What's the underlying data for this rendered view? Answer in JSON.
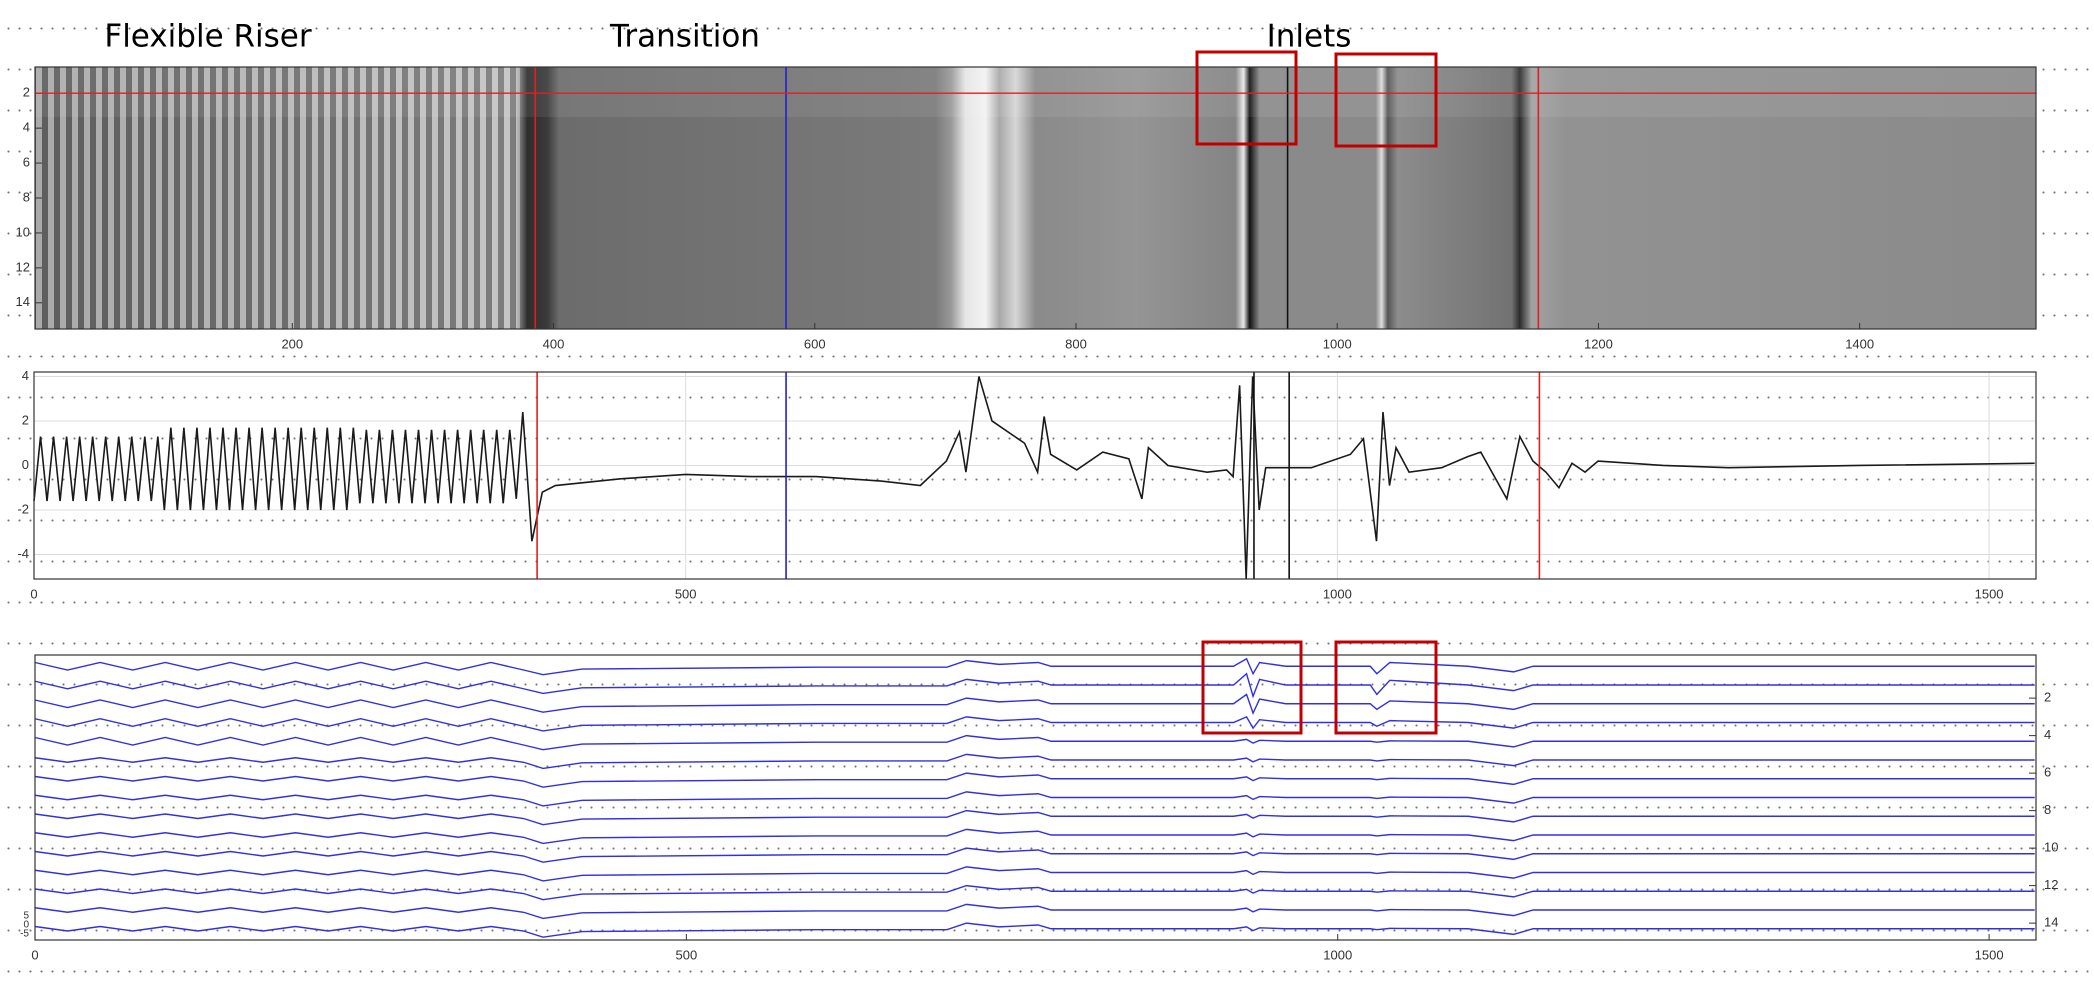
{
  "chart_data": [
    {
      "type": "image",
      "annotations": [
        "Flexible Riser",
        "Transition",
        "Inlets"
      ],
      "xlim": [
        3,
        1535
      ],
      "xticks": [
        200,
        400,
        600,
        800,
        1000,
        1200,
        1400
      ],
      "ylim": [
        0.5,
        15.5
      ],
      "y_inverted": true,
      "yticks": [
        2,
        4,
        6,
        8,
        10,
        12,
        14
      ],
      "hlines": [
        {
          "y": 2,
          "color": "#e02020"
        }
      ],
      "vlines": [
        {
          "x": 386,
          "color": "#e02020"
        },
        {
          "x": 578,
          "color": "#2020d0"
        },
        {
          "x": 962,
          "color": "#111111"
        },
        {
          "x": 1154,
          "color": "#e02020"
        }
      ]
    },
    {
      "type": "line",
      "x": [
        0,
        5,
        10,
        15,
        20,
        25,
        30,
        35,
        40,
        45,
        50,
        55,
        60,
        65,
        70,
        75,
        80,
        85,
        90,
        95,
        100,
        105,
        110,
        115,
        120,
        125,
        130,
        135,
        140,
        145,
        150,
        155,
        160,
        165,
        170,
        175,
        180,
        185,
        190,
        195,
        200,
        205,
        210,
        215,
        220,
        225,
        230,
        235,
        240,
        245,
        250,
        255,
        260,
        265,
        270,
        275,
        280,
        285,
        290,
        295,
        300,
        305,
        310,
        315,
        320,
        325,
        330,
        335,
        340,
        345,
        350,
        355,
        360,
        365,
        370,
        375,
        382,
        390,
        400,
        450,
        500,
        550,
        600,
        650,
        680,
        700,
        710,
        715,
        725,
        735,
        760,
        770,
        775,
        780,
        800,
        820,
        840,
        850,
        855,
        870,
        900,
        915,
        920,
        925,
        930,
        935,
        940,
        945,
        980,
        1010,
        1020,
        1030,
        1035,
        1040,
        1045,
        1055,
        1080,
        1100,
        1110,
        1130,
        1140,
        1150,
        1160,
        1170,
        1180,
        1190,
        1200,
        1250,
        1300,
        1400,
        1535
      ],
      "series": [
        {
          "color": "#1a1a1a",
          "values": [
            -1.6,
            1.3,
            -1.6,
            1.3,
            -1.6,
            1.3,
            -1.6,
            1.3,
            -1.6,
            1.3,
            -1.6,
            1.3,
            -1.6,
            1.3,
            -1.6,
            1.3,
            -1.6,
            1.3,
            -1.6,
            1.3,
            -2.0,
            1.7,
            -2.0,
            1.7,
            -2.0,
            1.7,
            -2.0,
            1.7,
            -2.0,
            1.7,
            -2.0,
            1.7,
            -2.0,
            1.7,
            -2.0,
            1.7,
            -2.0,
            1.7,
            -2.0,
            1.7,
            -2.0,
            1.7,
            -2.0,
            1.7,
            -2.0,
            1.7,
            -2.0,
            1.7,
            -2.0,
            1.7,
            -1.7,
            1.6,
            -1.7,
            1.6,
            -1.7,
            1.6,
            -1.7,
            1.6,
            -1.7,
            1.6,
            -1.7,
            1.6,
            -1.7,
            1.6,
            -1.7,
            1.6,
            -1.7,
            1.6,
            -1.7,
            1.6,
            -1.7,
            1.6,
            -1.7,
            1.6,
            -1.5,
            2.4,
            -3.4,
            -1.2,
            -0.9,
            -0.6,
            -0.4,
            -0.5,
            -0.5,
            -0.7,
            -0.9,
            0.2,
            1.5,
            -0.3,
            4.0,
            2.0,
            1.0,
            -0.3,
            2.2,
            0.5,
            -0.2,
            0.6,
            0.3,
            -1.5,
            0.8,
            0,
            -0.3,
            -0.2,
            -0.5,
            3.6,
            -5.1,
            4.0,
            -2.0,
            -0.1,
            -0.1,
            0.5,
            1.2,
            -3.4,
            2.4,
            -0.9,
            0.8,
            -0.3,
            -0.1,
            0.4,
            0.6,
            -1.5,
            1.3,
            0.2,
            -0.3,
            -1.0,
            0.1,
            -0.3,
            0.2,
            0,
            -0.1,
            0,
            0.1
          ]
        }
      ],
      "xlim": [
        0,
        1536
      ],
      "xticks": [
        0,
        500,
        1000,
        1500
      ],
      "ylim": [
        -5.1,
        4.2
      ],
      "yticks": [
        -4,
        -2,
        0,
        2,
        4
      ],
      "grid": true,
      "vlines": [
        {
          "x": 386,
          "color": "#e02020"
        },
        {
          "x": 577,
          "color": "#2020d0"
        },
        {
          "x": 936,
          "color": "#111111"
        },
        {
          "x": 963,
          "color": "#111111"
        },
        {
          "x": 1155,
          "color": "#e02020"
        }
      ]
    },
    {
      "type": "traces",
      "x": [
        0,
        25,
        50,
        75,
        100,
        125,
        150,
        175,
        200,
        225,
        250,
        275,
        300,
        325,
        350,
        375,
        390,
        420,
        600,
        700,
        715,
        740,
        770,
        780,
        800,
        920,
        930,
        935,
        940,
        960,
        1025,
        1030,
        1040,
        1100,
        1135,
        1150,
        1200,
        1535
      ],
      "series": [
        {
          "color": "#3030e0",
          "values": [
            0.1,
            0.5,
            0.1,
            0.5,
            0.1,
            0.5,
            0.1,
            0.5,
            0.1,
            0.5,
            0.1,
            0.5,
            0.1,
            0.5,
            0.1,
            0.5,
            0.75,
            0.45,
            0.35,
            0.35,
            0.0,
            0.2,
            0.1,
            0.3,
            0.3,
            0.3,
            -0.1,
            0.7,
            0.1,
            0.3,
            0.3,
            0.7,
            0.1,
            0.3,
            0.6,
            0.3,
            0.3,
            0.3
          ]
        },
        {
          "color": "#3030e0",
          "values": [
            1.1,
            1.5,
            1.1,
            1.5,
            1.1,
            1.5,
            1.1,
            1.5,
            1.1,
            1.5,
            1.1,
            1.5,
            1.1,
            1.5,
            1.1,
            1.5,
            1.75,
            1.45,
            1.35,
            1.35,
            1.0,
            1.2,
            1.1,
            1.3,
            1.3,
            1.3,
            0.7,
            1.9,
            1.0,
            1.3,
            1.3,
            1.8,
            1.05,
            1.3,
            1.6,
            1.3,
            1.3,
            1.3
          ]
        },
        {
          "color": "#3030e0",
          "values": [
            2.1,
            2.5,
            2.1,
            2.5,
            2.1,
            2.5,
            2.1,
            2.5,
            2.1,
            2.5,
            2.1,
            2.5,
            2.1,
            2.5,
            2.1,
            2.5,
            2.75,
            2.45,
            2.35,
            2.35,
            2.0,
            2.2,
            2.1,
            2.3,
            2.3,
            2.3,
            1.8,
            2.8,
            2.05,
            2.3,
            2.3,
            2.6,
            2.15,
            2.3,
            2.6,
            2.3,
            2.3,
            2.3
          ]
        },
        {
          "color": "#3030e0",
          "values": [
            3.1,
            3.5,
            3.1,
            3.5,
            3.1,
            3.5,
            3.1,
            3.5,
            3.1,
            3.5,
            3.1,
            3.5,
            3.1,
            3.5,
            3.1,
            3.5,
            3.75,
            3.45,
            3.35,
            3.35,
            3.0,
            3.2,
            3.1,
            3.3,
            3.3,
            3.3,
            3.0,
            3.6,
            3.15,
            3.3,
            3.3,
            3.5,
            3.2,
            3.3,
            3.6,
            3.3,
            3.3,
            3.3
          ]
        },
        {
          "color": "#3030e0",
          "values": [
            4.1,
            4.5,
            4.1,
            4.5,
            4.1,
            4.5,
            4.1,
            4.5,
            4.1,
            4.5,
            4.1,
            4.5,
            4.1,
            4.5,
            4.1,
            4.5,
            4.75,
            4.45,
            4.35,
            4.35,
            4.0,
            4.2,
            4.1,
            4.3,
            4.3,
            4.3,
            4.2,
            4.4,
            4.25,
            4.3,
            4.3,
            4.35,
            4.28,
            4.3,
            4.6,
            4.3,
            4.3,
            4.3
          ]
        },
        {
          "color": "#3030e0",
          "values": [
            5.18,
            5.42,
            5.18,
            5.42,
            5.18,
            5.42,
            5.18,
            5.42,
            5.18,
            5.42,
            5.18,
            5.42,
            5.18,
            5.42,
            5.18,
            5.42,
            5.75,
            5.45,
            5.35,
            5.35,
            5.0,
            5.2,
            5.1,
            5.3,
            5.3,
            5.3,
            5.2,
            5.4,
            5.25,
            5.3,
            5.3,
            5.35,
            5.28,
            5.3,
            5.6,
            5.3,
            5.3,
            5.3
          ]
        },
        {
          "color": "#3030e0",
          "values": [
            6.18,
            6.42,
            6.18,
            6.42,
            6.18,
            6.42,
            6.18,
            6.42,
            6.18,
            6.42,
            6.18,
            6.42,
            6.18,
            6.42,
            6.18,
            6.42,
            6.75,
            6.45,
            6.35,
            6.35,
            6.0,
            6.2,
            6.1,
            6.3,
            6.3,
            6.3,
            6.2,
            6.4,
            6.25,
            6.3,
            6.3,
            6.35,
            6.28,
            6.3,
            6.6,
            6.3,
            6.3,
            6.3
          ]
        },
        {
          "color": "#3030e0",
          "values": [
            7.18,
            7.42,
            7.18,
            7.42,
            7.18,
            7.42,
            7.18,
            7.42,
            7.18,
            7.42,
            7.18,
            7.42,
            7.18,
            7.42,
            7.18,
            7.42,
            7.75,
            7.45,
            7.35,
            7.35,
            7.0,
            7.2,
            7.1,
            7.3,
            7.3,
            7.3,
            7.2,
            7.4,
            7.25,
            7.3,
            7.3,
            7.35,
            7.28,
            7.3,
            7.6,
            7.3,
            7.3,
            7.3
          ]
        },
        {
          "color": "#3030e0",
          "values": [
            8.18,
            8.42,
            8.18,
            8.42,
            8.18,
            8.42,
            8.18,
            8.42,
            8.18,
            8.42,
            8.18,
            8.42,
            8.18,
            8.42,
            8.18,
            8.42,
            8.75,
            8.45,
            8.35,
            8.35,
            8.0,
            8.2,
            8.1,
            8.3,
            8.3,
            8.3,
            8.2,
            8.4,
            8.25,
            8.3,
            8.3,
            8.35,
            8.28,
            8.3,
            8.6,
            8.3,
            8.3,
            8.3
          ]
        },
        {
          "color": "#3030e0",
          "values": [
            9.18,
            9.42,
            9.18,
            9.42,
            9.18,
            9.42,
            9.18,
            9.42,
            9.18,
            9.42,
            9.18,
            9.42,
            9.18,
            9.42,
            9.18,
            9.42,
            9.75,
            9.45,
            9.35,
            9.35,
            9.0,
            9.2,
            9.1,
            9.3,
            9.3,
            9.3,
            9.2,
            9.4,
            9.25,
            9.3,
            9.3,
            9.35,
            9.28,
            9.3,
            9.6,
            9.3,
            9.3,
            9.3
          ]
        },
        {
          "color": "#3030e0",
          "values": [
            10.18,
            10.42,
            10.18,
            10.42,
            10.18,
            10.42,
            10.18,
            10.42,
            10.18,
            10.42,
            10.18,
            10.42,
            10.18,
            10.42,
            10.18,
            10.42,
            10.75,
            10.45,
            10.35,
            10.35,
            10.0,
            10.2,
            10.1,
            10.3,
            10.3,
            10.3,
            10.2,
            10.4,
            10.25,
            10.3,
            10.3,
            10.35,
            10.28,
            10.3,
            10.6,
            10.3,
            10.3,
            10.3
          ]
        },
        {
          "color": "#3030e0",
          "values": [
            11.18,
            11.42,
            11.18,
            11.42,
            11.18,
            11.42,
            11.18,
            11.42,
            11.18,
            11.42,
            11.18,
            11.42,
            11.18,
            11.42,
            11.18,
            11.42,
            11.75,
            11.45,
            11.35,
            11.35,
            11.0,
            11.2,
            11.1,
            11.3,
            11.3,
            11.3,
            11.2,
            11.4,
            11.25,
            11.3,
            11.3,
            11.35,
            11.28,
            11.3,
            11.6,
            11.3,
            11.3,
            11.3
          ]
        },
        {
          "color": "#3030e0",
          "values": [
            12.18,
            12.42,
            12.18,
            12.42,
            12.18,
            12.42,
            12.18,
            12.42,
            12.18,
            12.42,
            12.18,
            12.42,
            12.18,
            12.42,
            12.18,
            12.42,
            12.75,
            12.45,
            12.35,
            12.35,
            12.0,
            12.2,
            12.1,
            12.3,
            12.3,
            12.3,
            12.2,
            12.4,
            12.25,
            12.3,
            12.3,
            12.35,
            12.28,
            12.3,
            12.6,
            12.3,
            12.3,
            12.3
          ]
        },
        {
          "color": "#3030e0",
          "values": [
            13.18,
            13.42,
            13.18,
            13.42,
            13.18,
            13.42,
            13.18,
            13.42,
            13.18,
            13.42,
            13.18,
            13.42,
            13.18,
            13.42,
            13.18,
            13.42,
            13.75,
            13.45,
            13.35,
            13.35,
            13.0,
            13.2,
            13.1,
            13.3,
            13.3,
            13.3,
            13.2,
            13.4,
            13.25,
            13.3,
            13.3,
            13.35,
            13.28,
            13.3,
            13.6,
            13.3,
            13.3,
            13.3
          ]
        },
        {
          "color": "#3030e0",
          "values": [
            14.18,
            14.42,
            14.18,
            14.42,
            14.18,
            14.42,
            14.18,
            14.42,
            14.18,
            14.42,
            14.18,
            14.42,
            14.18,
            14.42,
            14.18,
            14.42,
            14.75,
            14.45,
            14.35,
            14.35,
            14.0,
            14.2,
            14.1,
            14.3,
            14.3,
            14.3,
            14.2,
            14.4,
            14.25,
            14.3,
            14.3,
            14.35,
            14.28,
            14.3,
            14.6,
            14.3,
            14.3,
            14.3
          ]
        }
      ],
      "xlim": [
        0,
        1536
      ],
      "xticks": [
        0,
        500,
        1000,
        1500
      ],
      "ylim": [
        -0.3,
        14.9
      ],
      "y_inverted": true,
      "yticks": [
        2,
        4,
        6,
        8,
        10,
        12,
        14
      ],
      "scale_labels": [
        "5",
        "0",
        "-5"
      ]
    }
  ]
}
